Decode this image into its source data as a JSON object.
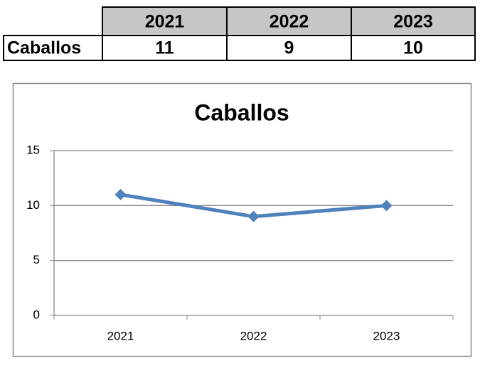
{
  "table": {
    "header": [
      "2021",
      "2022",
      "2023"
    ],
    "rows": [
      {
        "label": "Caballos",
        "values": [
          11,
          9,
          10
        ]
      }
    ]
  },
  "chart_data": {
    "type": "line",
    "title": "Caballos",
    "categories": [
      "2021",
      "2022",
      "2023"
    ],
    "values": [
      11,
      9,
      10
    ],
    "color": "#4f81bd",
    "ylim": [
      0,
      15
    ],
    "yticks": [
      0,
      5,
      10,
      15
    ],
    "grid": true
  }
}
